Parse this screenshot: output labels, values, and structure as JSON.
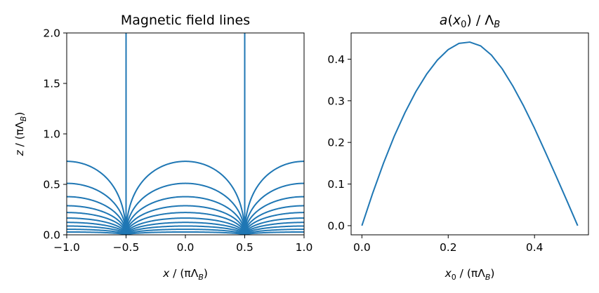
{
  "chart_data": [
    {
      "type": "line",
      "title": "Magnetic field lines",
      "xlabel": "x / (πΛ_B)",
      "ylabel": "z / (πΛ_B)",
      "xlim": [
        -1.0,
        1.0
      ],
      "ylim": [
        0.0,
        2.0
      ],
      "xticks": [
        -1.0,
        -0.5,
        0.0,
        0.5,
        1.0
      ],
      "xtick_labels": [
        "−1.0",
        "−0.5",
        "0.0",
        "0.5",
        "1.0"
      ],
      "yticks": [
        0.0,
        0.5,
        1.0,
        1.5,
        2.0
      ],
      "ytick_labels": [
        "0.0",
        "0.5",
        "1.0",
        "1.5",
        "2.0"
      ],
      "grid": false,
      "line_color": "#1f77b4",
      "vertical_lines_x": [
        -0.5,
        0.5
      ],
      "arch_peak_heights": [
        0.728,
        0.51,
        0.378,
        0.288,
        0.221,
        0.166,
        0.123,
        0.087,
        0.055,
        0.028
      ],
      "arch_centers": [
        -1.0,
        0.0,
        1.0
      ],
      "arch_half_width": 0.5
    },
    {
      "type": "line",
      "title": "a(x₀) / Λ_B",
      "xlabel": "x₀ / (πΛ_B)",
      "ylabel": "",
      "xlim": [
        -0.025,
        0.525
      ],
      "ylim": [
        -0.022,
        0.463
      ],
      "xticks": [
        0.0,
        0.2,
        0.4
      ],
      "xtick_labels": [
        "0.0",
        "0.2",
        "0.4"
      ],
      "yticks": [
        0.0,
        0.1,
        0.2,
        0.3,
        0.4
      ],
      "ytick_labels": [
        "0.0",
        "0.1",
        "0.2",
        "0.3",
        "0.4"
      ],
      "grid": false,
      "line_color": "#1f77b4",
      "series": [
        {
          "x": [
            0.0,
            0.025,
            0.05,
            0.075,
            0.1,
            0.125,
            0.15,
            0.175,
            0.2,
            0.225,
            0.25,
            0.275,
            0.3,
            0.325,
            0.35,
            0.375,
            0.4,
            0.425,
            0.45,
            0.475,
            0.5
          ],
          "values": [
            0.0,
            0.078,
            0.15,
            0.215,
            0.272,
            0.322,
            0.364,
            0.398,
            0.423,
            0.438,
            0.441,
            0.432,
            0.41,
            0.377,
            0.335,
            0.287,
            0.234,
            0.177,
            0.119,
            0.06,
            0.0
          ]
        }
      ]
    }
  ]
}
